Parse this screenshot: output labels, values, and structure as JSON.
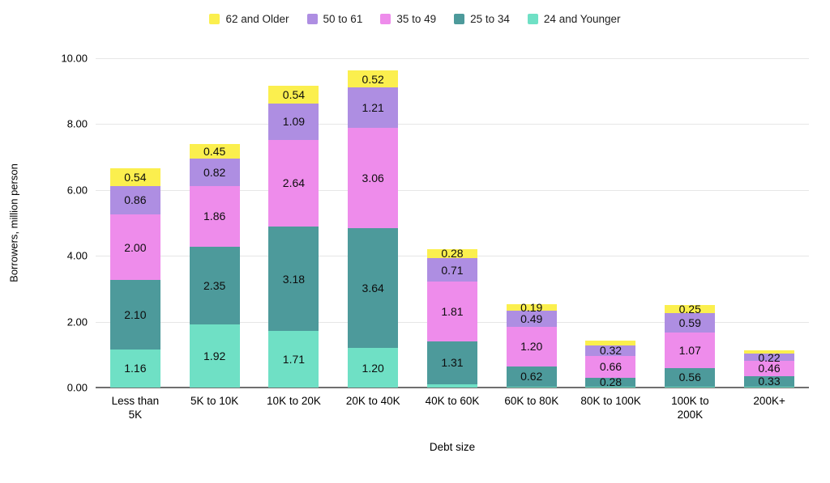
{
  "chart_data": {
    "type": "bar",
    "stacked": true,
    "title": "",
    "xlabel": "Debt size",
    "ylabel": "Borrowers, million person",
    "ylim": [
      0,
      10
    ],
    "ytick_values": [
      0,
      2,
      4,
      6,
      8,
      10
    ],
    "ytick_labels": [
      "0.00",
      "2.00",
      "4.00",
      "6.00",
      "8.00",
      "10.00"
    ],
    "grid": true,
    "gridline_color": "#e6e6e6",
    "baseline_color": "#6f6f6f",
    "legend_position": "top",
    "legend_order": [
      "62 and Older",
      "50 to 61",
      "35 to 49",
      "25 to 34",
      "24 and Younger"
    ],
    "categories": [
      "Less than\n5K",
      "5K to 10K",
      "10K to 20K",
      "20K to 40K",
      "40K to 60K",
      "60K to 80K",
      "80K to 100K",
      "100K to\n200K",
      "200K+"
    ],
    "series": [
      {
        "name": "24 and Younger",
        "color": "#6fe0c5",
        "values": [
          1.16,
          1.92,
          1.71,
          1.2,
          0.1,
          0.03,
          0.02,
          0.03,
          0.02
        ],
        "labels": [
          "1.16",
          "1.92",
          "1.71",
          "1.20",
          "",
          "",
          "",
          "",
          ""
        ]
      },
      {
        "name": "25 to 34",
        "color": "#4d9a9b",
        "values": [
          2.1,
          2.35,
          3.18,
          3.64,
          1.31,
          0.62,
          0.28,
          0.56,
          0.33
        ],
        "labels": [
          "2.10",
          "2.35",
          "3.18",
          "3.64",
          "1.31",
          "0.62",
          "0.28",
          "0.56",
          "0.33"
        ]
      },
      {
        "name": "35 to 49",
        "color": "#ee8ceb",
        "values": [
          2.0,
          1.86,
          2.64,
          3.06,
          1.81,
          1.2,
          0.66,
          1.07,
          0.46
        ],
        "labels": [
          "2.00",
          "1.86",
          "2.64",
          "3.06",
          "1.81",
          "1.20",
          "0.66",
          "1.07",
          "0.46"
        ]
      },
      {
        "name": "50 to 61",
        "color": "#ae8ee2",
        "values": [
          0.86,
          0.82,
          1.09,
          1.21,
          0.71,
          0.49,
          0.32,
          0.59,
          0.22
        ],
        "labels": [
          "0.86",
          "0.82",
          "1.09",
          "1.21",
          "0.71",
          "0.49",
          "0.32",
          "0.59",
          "0.22"
        ]
      },
      {
        "name": "62 and Older",
        "color": "#fbef4e",
        "values": [
          0.54,
          0.45,
          0.54,
          0.52,
          0.28,
          0.19,
          0.14,
          0.25,
          0.09
        ],
        "labels": [
          "0.54",
          "0.45",
          "0.54",
          "0.52",
          "0.28",
          "0.19",
          "",
          "0.25",
          ""
        ]
      }
    ]
  }
}
